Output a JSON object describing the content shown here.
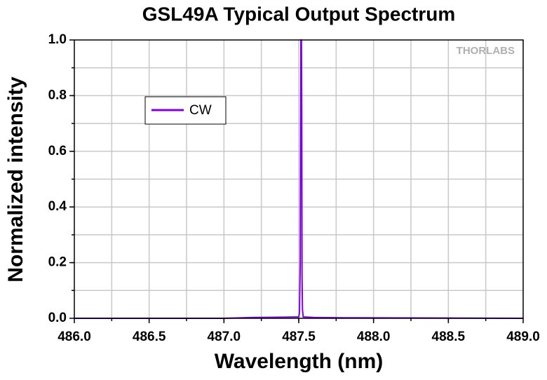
{
  "chart_data": {
    "type": "line",
    "title": "GSL49A Typical Output Spectrum",
    "x_label": "Wavelength (nm)",
    "y_label": "Normalized intensity",
    "watermark": "THORLABS",
    "x": [
      486.0,
      487.0,
      487.2,
      487.4,
      487.5,
      487.505,
      487.51,
      487.512,
      487.514,
      487.516,
      487.518,
      487.52,
      487.522,
      487.525,
      487.53,
      487.6,
      487.8,
      489.0
    ],
    "series": [
      {
        "name": "CW",
        "color": "#8000e6",
        "values": [
          0.0,
          0.0,
          0.003,
          0.004,
          0.005,
          0.02,
          0.2,
          0.66,
          1.0,
          1.0,
          1.0,
          0.73,
          0.15,
          0.03,
          0.005,
          0.003,
          0.002,
          0.0
        ]
      }
    ],
    "xlim": [
      486.0,
      489.0
    ],
    "ylim": [
      0.0,
      1.0
    ],
    "xticks": [
      {
        "value": 486.0,
        "label": "486.0"
      },
      486.5,
      {
        "value": 487.0,
        "label": "487.0"
      },
      487.5,
      {
        "value": 488.0,
        "label": "488.0"
      },
      488.5,
      {
        "value": 489.0,
        "label": "489.0"
      }
    ],
    "yticks": [
      {
        "value": 0.0,
        "label": "0.0"
      },
      0.2,
      0.4,
      0.6,
      0.8,
      {
        "value": 1.0,
        "label": "1.0"
      }
    ],
    "xgrid": [
      486.25,
      486.5,
      486.75,
      487.0,
      487.25,
      487.5,
      487.75,
      488.0,
      488.25,
      488.5,
      488.75
    ],
    "ygrid": [
      0.1,
      0.2,
      0.3,
      0.4,
      0.5,
      0.6,
      0.7,
      0.8,
      0.9
    ],
    "grid": true
  }
}
